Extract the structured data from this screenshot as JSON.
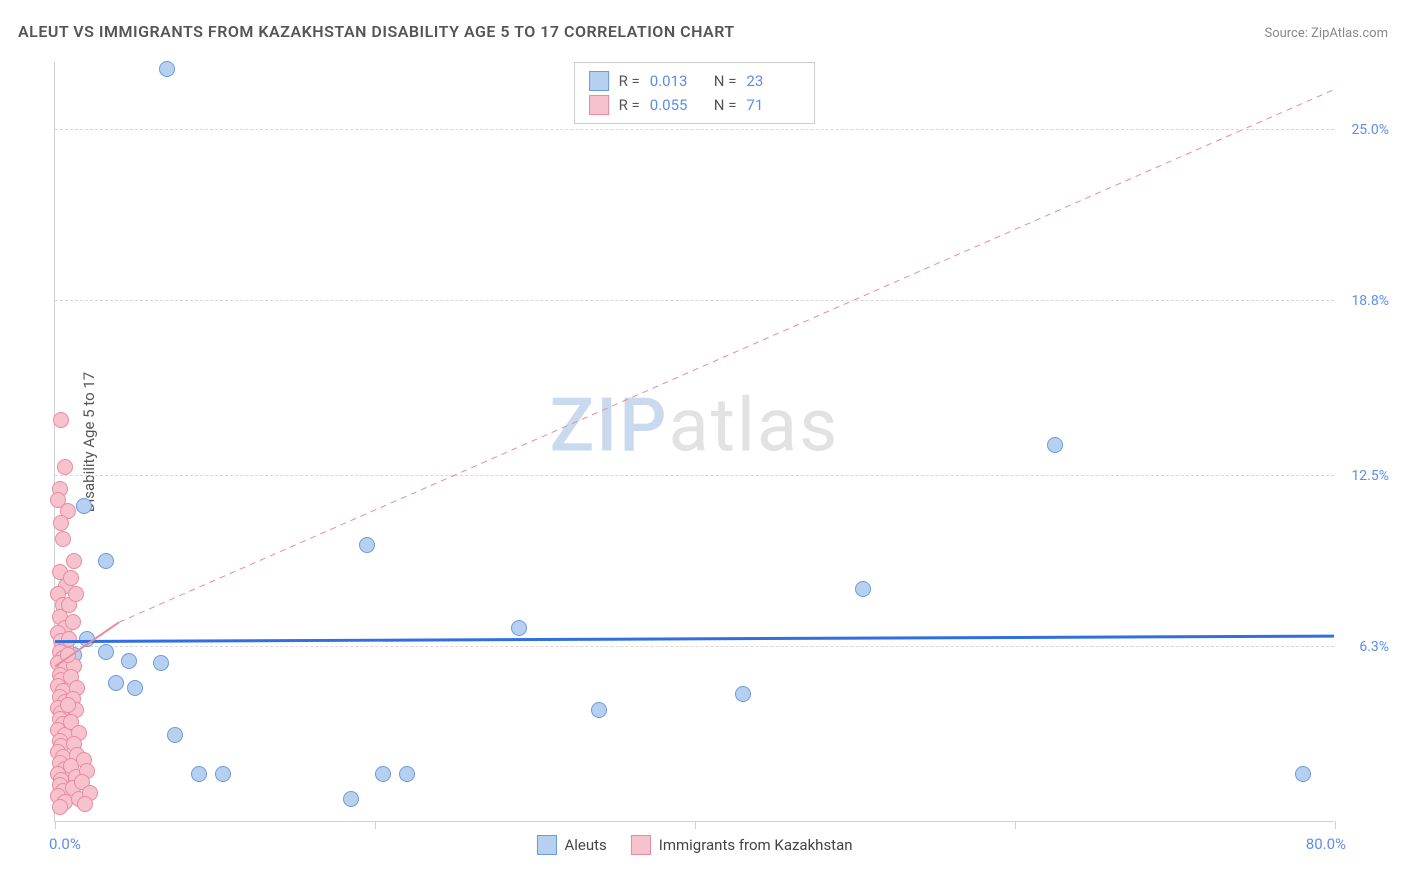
{
  "title": "ALEUT VS IMMIGRANTS FROM KAZAKHSTAN DISABILITY AGE 5 TO 17 CORRELATION CHART",
  "source": "Source: ZipAtlas.com",
  "y_axis_title": "Disability Age 5 to 17",
  "watermark_a": "ZIP",
  "watermark_b": "atlas",
  "chart": {
    "type": "scatter",
    "xlim": [
      0,
      80
    ],
    "ylim": [
      0,
      27.5
    ],
    "x_tick_positions": [
      0,
      20,
      40,
      60,
      80
    ],
    "x_label_min": "0.0%",
    "x_label_max": "80.0%",
    "y_gridlines": [
      {
        "value": 6.3,
        "label": "6.3%"
      },
      {
        "value": 12.5,
        "label": "12.5%"
      },
      {
        "value": 18.8,
        "label": "18.8%"
      },
      {
        "value": 25.0,
        "label": "25.0%"
      }
    ],
    "background_color": "#ffffff",
    "grid_color": "#d8d8d8",
    "axis_color": "#d0d0d0",
    "tick_label_color": "#5b8def",
    "marker_size": 16,
    "series": [
      {
        "name": "Aleuts",
        "fill": "#b7d0f0",
        "stroke": "#6a9be0",
        "R": "0.013",
        "N": "23",
        "trend": {
          "x1": 0,
          "y1": 6.5,
          "x2": 80,
          "y2": 6.7,
          "stroke": "#2f6fe0",
          "width": 3,
          "dash": "none"
        },
        "points": [
          [
            7.0,
            27.2
          ],
          [
            3.2,
            9.4
          ],
          [
            2.0,
            6.6
          ],
          [
            3.2,
            6.1
          ],
          [
            4.6,
            5.8
          ],
          [
            6.6,
            5.7
          ],
          [
            3.8,
            5.0
          ],
          [
            5.0,
            4.8
          ],
          [
            7.5,
            3.1
          ],
          [
            9.0,
            1.7
          ],
          [
            10.5,
            1.7
          ],
          [
            18.5,
            0.8
          ],
          [
            20.5,
            1.7
          ],
          [
            22.0,
            1.7
          ],
          [
            19.5,
            10.0
          ],
          [
            29.0,
            7.0
          ],
          [
            34.0,
            4.0
          ],
          [
            43.0,
            4.6
          ],
          [
            50.5,
            8.4
          ],
          [
            62.5,
            13.6
          ],
          [
            78.0,
            1.7
          ],
          [
            1.8,
            11.4
          ],
          [
            1.2,
            6.0
          ]
        ]
      },
      {
        "name": "Immigrants from Kazakhstan",
        "fill": "#f6c2cd",
        "stroke": "#e98aa0",
        "R": "0.055",
        "N": "71",
        "trend": {
          "x1": 0,
          "y1": 5.6,
          "x2": 4.0,
          "y2": 7.2,
          "stroke": "#e98aa0",
          "width": 2,
          "dash": "none"
        },
        "reference_line": {
          "x1": 4.0,
          "y1": 7.2,
          "x2": 80,
          "y2": 26.5,
          "stroke": "#e98aa0",
          "width": 1,
          "dash": "6,5"
        },
        "points": [
          [
            0.4,
            14.5
          ],
          [
            0.6,
            12.8
          ],
          [
            0.3,
            12.0
          ],
          [
            0.2,
            11.6
          ],
          [
            0.8,
            11.2
          ],
          [
            0.4,
            10.8
          ],
          [
            0.5,
            10.2
          ],
          [
            0.3,
            9.0
          ],
          [
            0.7,
            8.5
          ],
          [
            0.2,
            8.2
          ],
          [
            0.5,
            7.8
          ],
          [
            0.3,
            7.4
          ],
          [
            0.6,
            7.0
          ],
          [
            0.2,
            6.8
          ],
          [
            0.4,
            6.5
          ],
          [
            0.7,
            6.3
          ],
          [
            0.3,
            6.1
          ],
          [
            0.5,
            5.9
          ],
          [
            0.2,
            5.7
          ],
          [
            0.6,
            5.5
          ],
          [
            0.3,
            5.3
          ],
          [
            0.4,
            5.1
          ],
          [
            0.2,
            4.9
          ],
          [
            0.5,
            4.7
          ],
          [
            0.3,
            4.5
          ],
          [
            0.6,
            4.3
          ],
          [
            0.2,
            4.1
          ],
          [
            0.4,
            3.9
          ],
          [
            0.3,
            3.7
          ],
          [
            0.5,
            3.5
          ],
          [
            0.2,
            3.3
          ],
          [
            0.6,
            3.1
          ],
          [
            0.3,
            2.9
          ],
          [
            0.4,
            2.7
          ],
          [
            0.2,
            2.5
          ],
          [
            0.5,
            2.3
          ],
          [
            0.3,
            2.1
          ],
          [
            0.6,
            1.9
          ],
          [
            0.2,
            1.7
          ],
          [
            0.4,
            1.5
          ],
          [
            0.3,
            1.3
          ],
          [
            0.5,
            1.1
          ],
          [
            0.2,
            0.9
          ],
          [
            0.6,
            0.7
          ],
          [
            0.3,
            0.5
          ],
          [
            1.2,
            5.6
          ],
          [
            1.0,
            5.2
          ],
          [
            1.4,
            4.8
          ],
          [
            1.1,
            4.4
          ],
          [
            1.3,
            4.0
          ],
          [
            1.0,
            3.6
          ],
          [
            1.5,
            3.2
          ],
          [
            1.2,
            2.8
          ],
          [
            1.4,
            2.4
          ],
          [
            1.0,
            2.0
          ],
          [
            1.3,
            1.6
          ],
          [
            1.1,
            1.2
          ],
          [
            1.5,
            0.8
          ],
          [
            1.8,
            2.2
          ],
          [
            2.0,
            1.8
          ],
          [
            1.7,
            1.4
          ],
          [
            2.2,
            1.0
          ],
          [
            1.9,
            0.6
          ],
          [
            0.9,
            6.6
          ],
          [
            0.8,
            6.0
          ],
          [
            1.1,
            7.2
          ],
          [
            0.9,
            7.8
          ],
          [
            1.3,
            8.2
          ],
          [
            1.0,
            8.8
          ],
          [
            1.2,
            9.4
          ],
          [
            0.8,
            4.2
          ]
        ]
      }
    ]
  },
  "legend_bottom": [
    {
      "label": "Aleuts",
      "fill": "#b7d0f0",
      "stroke": "#6a9be0"
    },
    {
      "label": "Immigrants from Kazakhstan",
      "fill": "#f6c2cd",
      "stroke": "#e98aa0"
    }
  ]
}
